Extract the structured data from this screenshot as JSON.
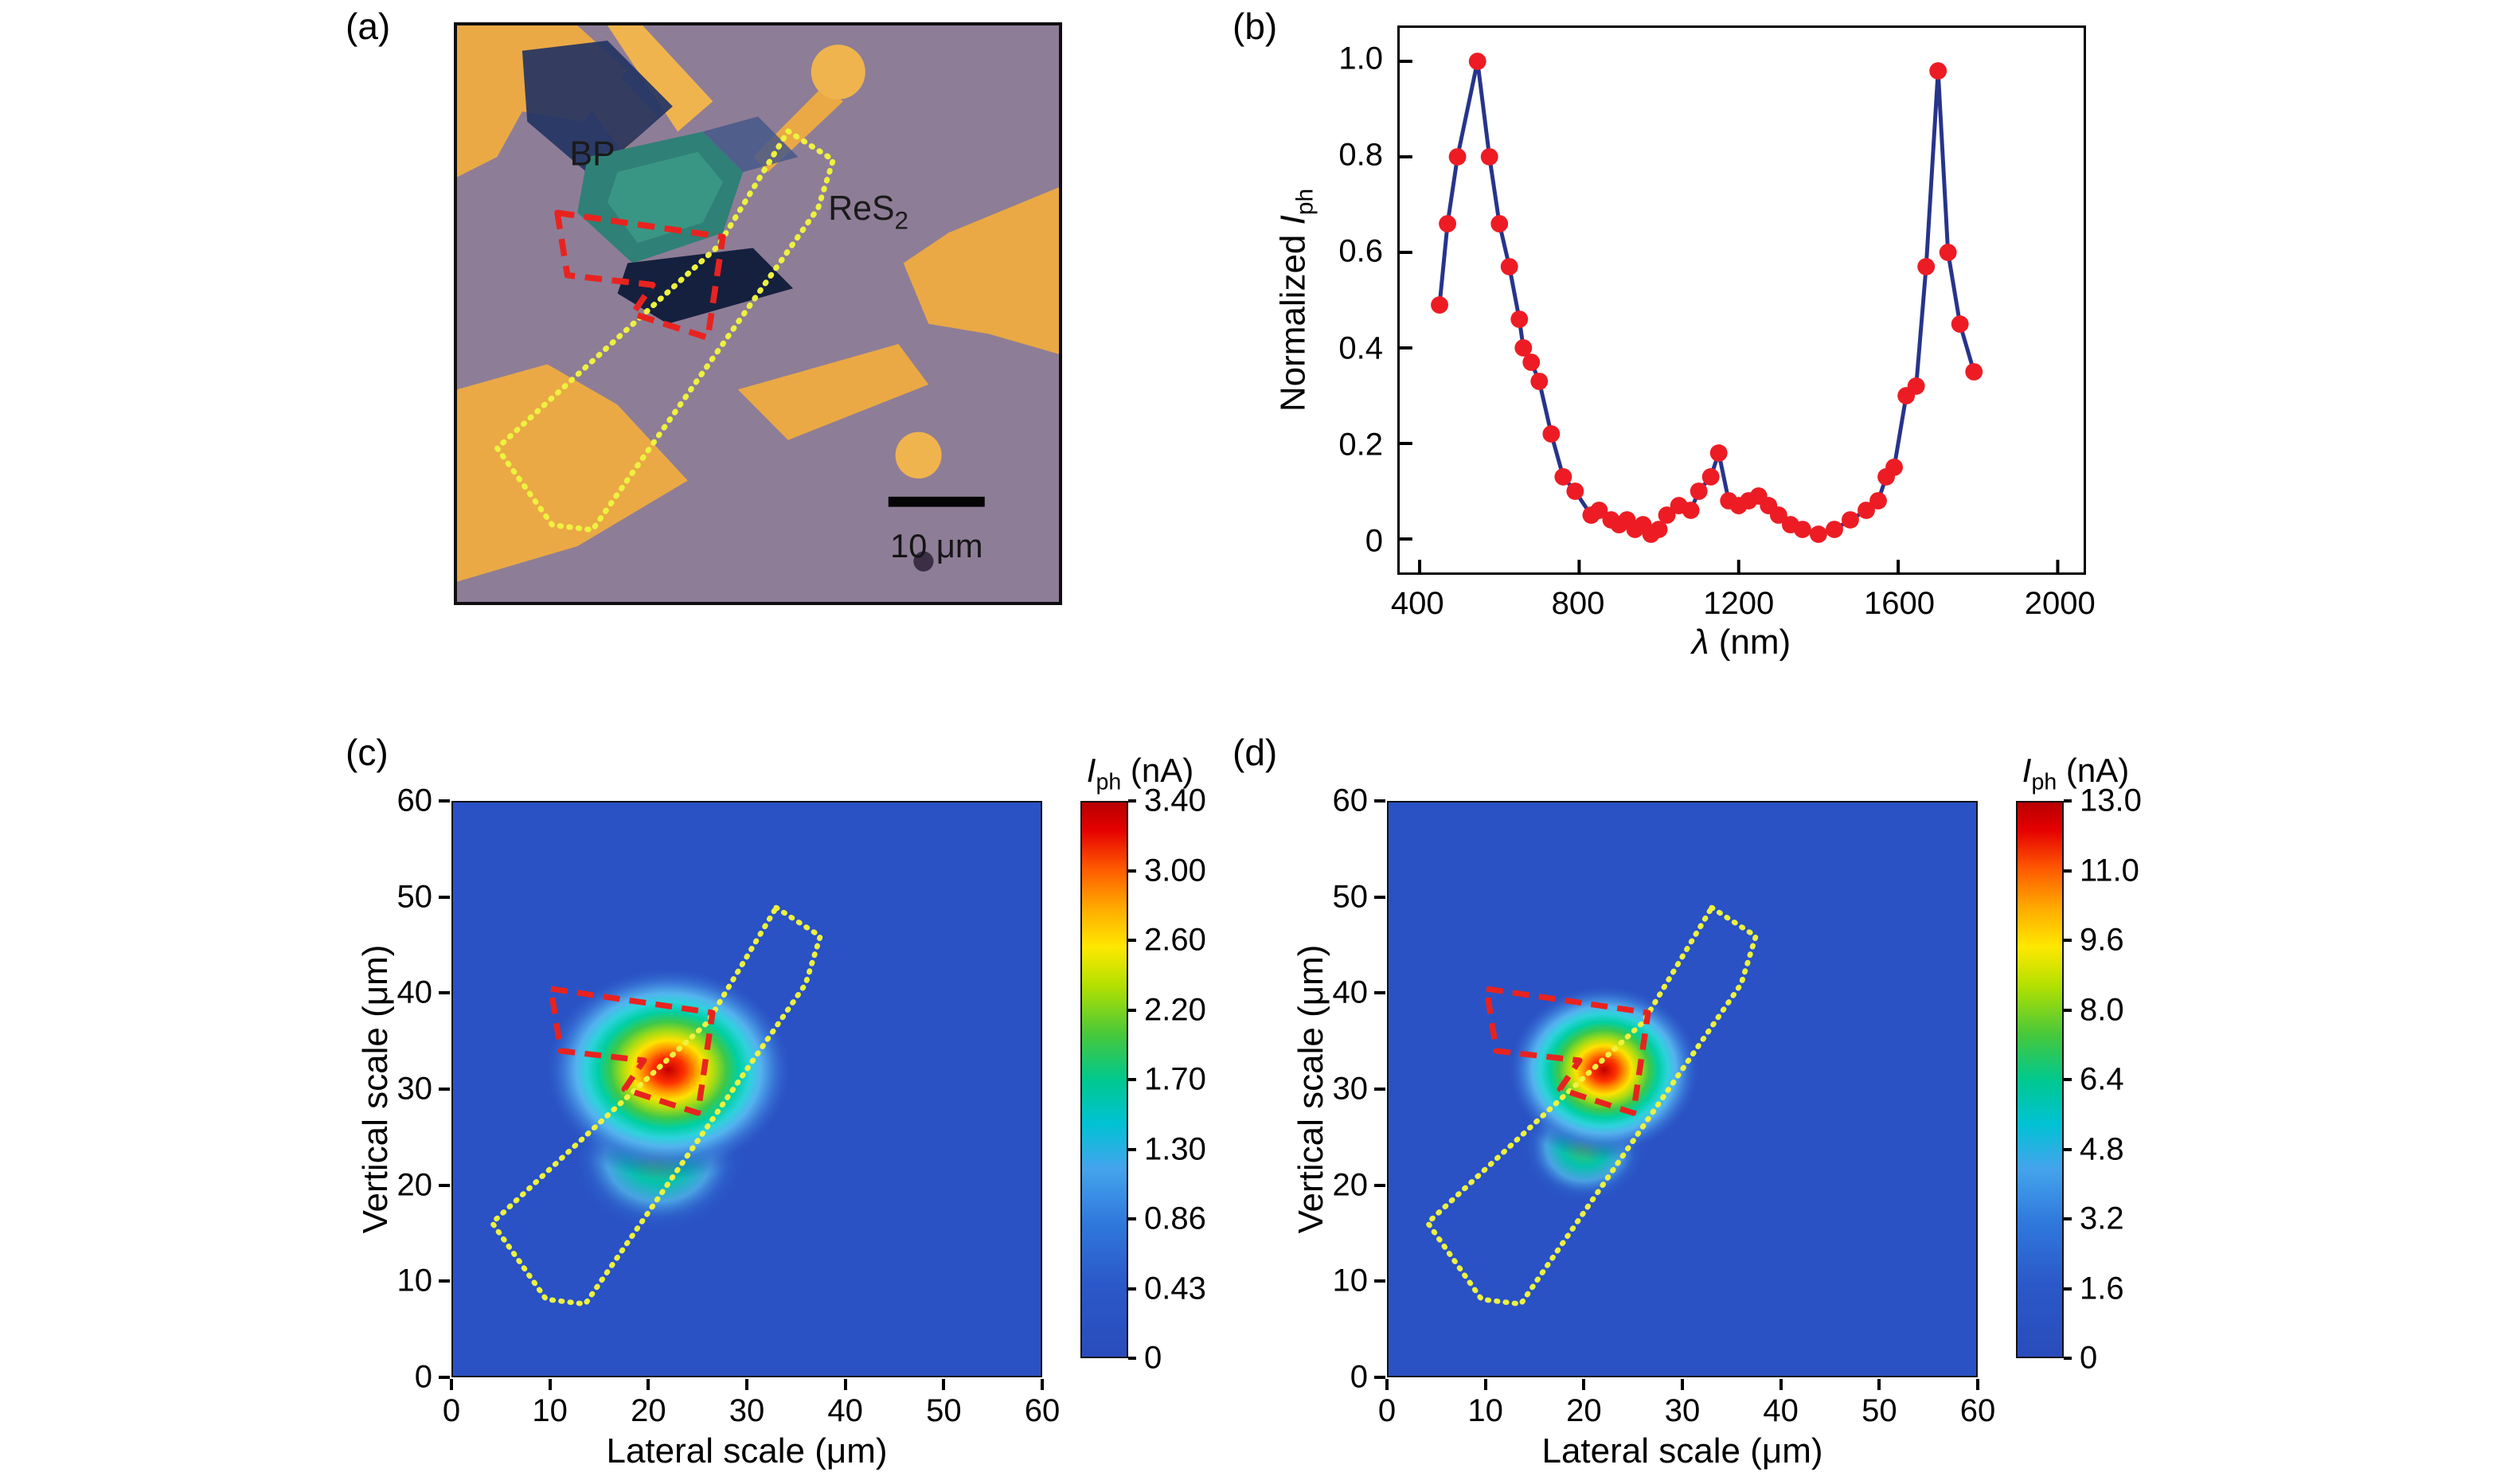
{
  "colors": {
    "accent_red": "#e8231f",
    "accent_yellow": "#edf23f",
    "line_blue": "#27348b",
    "dot_red": "#ed1c24",
    "heat_bg": "#2a52c4",
    "gold": "#eaa945",
    "micro_bg": "#8e7d96",
    "teal_flake": "#2f8076",
    "navy_flake": "#243463"
  },
  "panels": {
    "a": {
      "label": "(a)",
      "bp": "BP",
      "res2_main": "ReS",
      "res2_sub": "2",
      "scalebar": "10 μm"
    },
    "b": {
      "label": "(b)",
      "ylabel_text": "Normalized ",
      "ylabel_italic": "I",
      "ylabel_sub": "ph",
      "xlabel_italic": "λ",
      "xlabel_text": " (nm)",
      "x_ticks": [
        "400",
        "800",
        "1200",
        "1600",
        "2000"
      ],
      "y_ticks": [
        "0",
        "0.2",
        "0.4",
        "0.6",
        "0.8",
        "1.0"
      ]
    },
    "c": {
      "label": "(c)",
      "xlabel": "Lateral scale (μm)",
      "ylabel": "Vertical scale (μm)",
      "x_ticks": [
        "0",
        "10",
        "20",
        "30",
        "40",
        "50",
        "60"
      ],
      "y_ticks": [
        "0",
        "10",
        "20",
        "30",
        "40",
        "50",
        "60"
      ],
      "cb_italic": "I",
      "cb_sub": "ph",
      "cb_text": " (nA)",
      "colorbar_ticks": [
        "3.40",
        "3.00",
        "2.60",
        "2.20",
        "1.70",
        "1.30",
        "0.86",
        "0.43",
        "0"
      ]
    },
    "d": {
      "label": "(d)",
      "xlabel": "Lateral scale (μm)",
      "ylabel": "Vertical scale (μm)",
      "x_ticks": [
        "0",
        "10",
        "20",
        "30",
        "40",
        "50",
        "60"
      ],
      "y_ticks": [
        "0",
        "10",
        "20",
        "30",
        "40",
        "50",
        "60"
      ],
      "cb_italic": "I",
      "cb_sub": "ph",
      "cb_text": " (nA)",
      "colorbar_ticks": [
        "13.0",
        "11.0",
        "9.6",
        "8.0",
        "6.4",
        "4.8",
        "3.2",
        "1.6",
        "0"
      ]
    }
  },
  "overlays": {
    "red_dashed_outline": [
      [
        10,
        40.5
      ],
      [
        26.5,
        38
      ],
      [
        25,
        27.5
      ],
      [
        17.5,
        30
      ],
      [
        19.5,
        33
      ],
      [
        11,
        34
      ]
    ],
    "yellow_dotted_outline": [
      [
        33,
        49
      ],
      [
        37.5,
        46
      ],
      [
        36,
        41
      ],
      [
        13.5,
        7.5
      ],
      [
        9.5,
        8
      ],
      [
        4,
        16
      ],
      [
        26,
        37
      ]
    ]
  },
  "colormap": {
    "bar_stops": [
      {
        "o": 0,
        "c": "#b80000"
      },
      {
        "o": 0.05,
        "c": "#e60000"
      },
      {
        "o": 0.12,
        "c": "#ff5a00"
      },
      {
        "o": 0.19,
        "c": "#ffaa00"
      },
      {
        "o": 0.26,
        "c": "#ffe800"
      },
      {
        "o": 0.33,
        "c": "#b4e000"
      },
      {
        "o": 0.42,
        "c": "#46c83c"
      },
      {
        "o": 0.5,
        "c": "#00c88e"
      },
      {
        "o": 0.58,
        "c": "#00c2d4"
      },
      {
        "o": 0.66,
        "c": "#44a4ec"
      },
      {
        "o": 0.76,
        "c": "#2f78dc"
      },
      {
        "o": 0.87,
        "c": "#2b58c8"
      },
      {
        "o": 1,
        "c": "#2a4cbc"
      }
    ],
    "blob_stops": [
      {
        "o": 0,
        "c": "#c40000"
      },
      {
        "o": 0.12,
        "c": "#ff3000"
      },
      {
        "o": 0.2,
        "c": "#ff9400"
      },
      {
        "o": 0.27,
        "c": "#ffe200"
      },
      {
        "o": 0.35,
        "c": "#a8dc14"
      },
      {
        "o": 0.44,
        "c": "#3cc84a"
      },
      {
        "o": 0.53,
        "c": "#00cfa4"
      },
      {
        "o": 0.62,
        "c": "#2ed2dc"
      },
      {
        "o": 0.7,
        "c": "#54b2ee"
      },
      {
        "o": 0.8,
        "c": "#3a7ad8",
        "a": 0.9
      },
      {
        "o": 0.92,
        "c": "#2a52c4",
        "a": 0.3
      },
      {
        "o": 1,
        "c": "#2a52c4",
        "a": 0
      }
    ],
    "bump_stops": [
      {
        "o": 0,
        "c": "#4ac656",
        "a": 0.95
      },
      {
        "o": 0.35,
        "c": "#00cfa8",
        "a": 0.9
      },
      {
        "o": 0.6,
        "c": "#4fb0e8",
        "a": 0.85
      },
      {
        "o": 0.8,
        "c": "#2f6ad0",
        "a": 0.5
      },
      {
        "o": 1,
        "c": "#2a52c4",
        "a": 0
      }
    ]
  },
  "chart_data": [
    {
      "id": "spectral-response",
      "type": "line",
      "panel": "b",
      "title": "",
      "xlabel": "λ (nm)",
      "ylabel": "Normalized Iph",
      "xlim": [
        350,
        2065
      ],
      "ylim": [
        -0.07,
        1.07
      ],
      "x_tick_values": [
        400,
        800,
        1200,
        1600,
        2000
      ],
      "y_tick_values": [
        0,
        0.2,
        0.4,
        0.6,
        0.8,
        1.0
      ],
      "x": [
        450,
        470,
        495,
        545,
        575,
        600,
        625,
        650,
        660,
        680,
        700,
        730,
        760,
        790,
        830,
        850,
        880,
        900,
        920,
        940,
        960,
        980,
        1000,
        1020,
        1050,
        1080,
        1100,
        1130,
        1150,
        1175,
        1200,
        1225,
        1250,
        1275,
        1300,
        1330,
        1360,
        1400,
        1440,
        1480,
        1520,
        1550,
        1570,
        1590,
        1620,
        1645,
        1670,
        1700,
        1725,
        1755,
        1790
      ],
      "y": [
        0.49,
        0.66,
        0.8,
        1.0,
        0.8,
        0.66,
        0.57,
        0.46,
        0.4,
        0.37,
        0.33,
        0.22,
        0.13,
        0.1,
        0.05,
        0.06,
        0.04,
        0.03,
        0.04,
        0.02,
        0.03,
        0.01,
        0.02,
        0.05,
        0.07,
        0.06,
        0.1,
        0.13,
        0.18,
        0.08,
        0.07,
        0.08,
        0.09,
        0.07,
        0.05,
        0.03,
        0.02,
        0.01,
        0.02,
        0.04,
        0.06,
        0.08,
        0.13,
        0.15,
        0.3,
        0.32,
        0.57,
        0.98,
        0.6,
        0.45,
        0.35
      ],
      "grid": false,
      "legend": "none"
    },
    {
      "id": "photocurrent-map-c",
      "type": "heatmap",
      "panel": "c",
      "xlabel": "Lateral scale (μm)",
      "ylabel": "Vertical scale (μm)",
      "xlim": [
        0,
        60
      ],
      "ylim": [
        0,
        60
      ],
      "x_tick_values": [
        0,
        10,
        20,
        30,
        40,
        50,
        60
      ],
      "y_tick_values": [
        0,
        10,
        20,
        30,
        40,
        50,
        60
      ],
      "colorbar_title": "Iph (nA)",
      "colorbar_range": [
        0,
        3.4
      ],
      "colorbar_tick_values": [
        3.4,
        3.0,
        2.6,
        2.2,
        1.7,
        1.3,
        0.86,
        0.43,
        0
      ],
      "hotspot_center": [
        22,
        32
      ],
      "hotspot_peak_nA": 3.4,
      "blob": {
        "cx": 22,
        "cy": 32,
        "rx": 13.5,
        "ry": 11.5
      },
      "bump": {
        "cx": 21,
        "cy": 23,
        "rx": 9,
        "ry": 8
      }
    },
    {
      "id": "photocurrent-map-d",
      "type": "heatmap",
      "panel": "d",
      "xlabel": "Lateral scale (μm)",
      "ylabel": "Vertical scale (μm)",
      "xlim": [
        0,
        60
      ],
      "ylim": [
        0,
        60
      ],
      "x_tick_values": [
        0,
        10,
        20,
        30,
        40,
        50,
        60
      ],
      "y_tick_values": [
        0,
        10,
        20,
        30,
        40,
        50,
        60
      ],
      "colorbar_title": "Iph (nA)",
      "colorbar_range": [
        0,
        13.0
      ],
      "colorbar_tick_values": [
        13.0,
        11.0,
        9.6,
        8.0,
        6.4,
        4.8,
        3.2,
        1.6,
        0
      ],
      "hotspot_center": [
        22,
        32
      ],
      "hotspot_peak_nA": 13.0,
      "blob": {
        "cx": 22,
        "cy": 32,
        "rx": 10.5,
        "ry": 9.5
      },
      "bump": {
        "cx": 20,
        "cy": 24,
        "rx": 6.5,
        "ry": 6
      }
    }
  ]
}
